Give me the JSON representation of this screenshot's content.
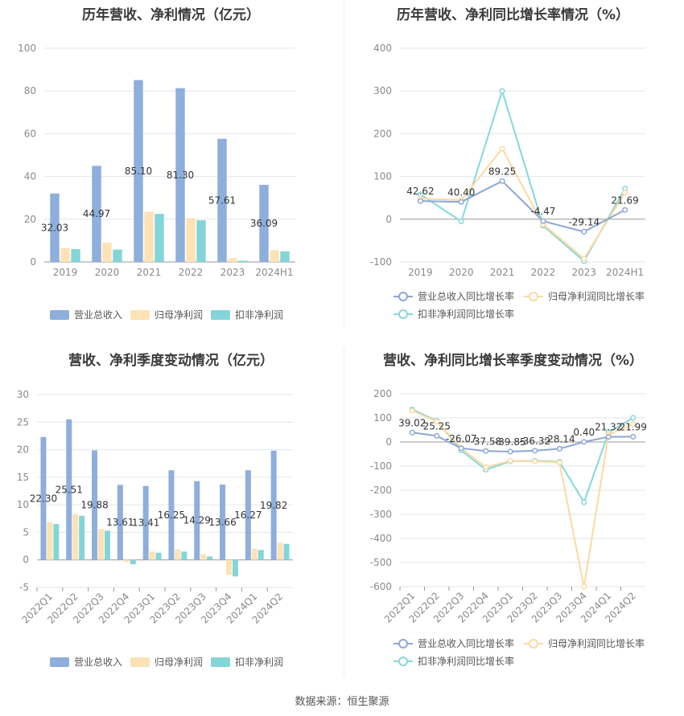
{
  "source": "数据来源：恒生聚源",
  "colors": {
    "revenue_bar": "#8eaedc",
    "parent_bar": "#fde2b5",
    "nonrec_bar": "#84d5d8",
    "revenue_line": "#8ea7d3",
    "parent_line": "#fcd9a0",
    "nonrec_line": "#86d8dc",
    "grid": "#e3e6ef",
    "axis_text": "#8a8a8a",
    "label_text": "#333333"
  },
  "chart_data": [
    {
      "type": "bar",
      "title": "历年营收、净利情况（亿元）",
      "categories": [
        "2019",
        "2020",
        "2021",
        "2022",
        "2023",
        "2024H1"
      ],
      "ylim": [
        0,
        100
      ],
      "yticks": [
        "0",
        "20",
        "40",
        "60",
        "80",
        "100"
      ],
      "series": [
        {
          "name": "营业总收入",
          "values": [
            32.03,
            44.97,
            85.1,
            81.3,
            57.61,
            36.09
          ],
          "labels": [
            "32.03",
            "44.97",
            "85.10",
            "81.30",
            "57.61",
            "36.09"
          ]
        },
        {
          "name": "归母净利润",
          "values": [
            6.5,
            9.0,
            23.5,
            20.5,
            1.8,
            5.5
          ]
        },
        {
          "name": "扣非净利润",
          "values": [
            6.0,
            5.8,
            22.5,
            19.5,
            0.6,
            5.0
          ]
        }
      ],
      "legend": "bottom",
      "grid": true
    },
    {
      "type": "line",
      "title": "历年营收、净利同比增长率情况（%）",
      "categories": [
        "2019",
        "2020",
        "2021",
        "2022",
        "2023",
        "2024H1"
      ],
      "ylim": [
        -100,
        400
      ],
      "yticks": [
        "-100",
        "0",
        "100",
        "200",
        "300",
        "400"
      ],
      "series": [
        {
          "name": "营业总收入同比增长率",
          "values": [
            42.62,
            40.4,
            89.25,
            -4.47,
            -29.14,
            21.69
          ],
          "labels": [
            "42.62",
            "40.40",
            "89.25",
            "-4.47",
            "-29.14",
            "21.69"
          ]
        },
        {
          "name": "归母净利润同比增长率",
          "values": [
            48,
            45,
            165,
            -12,
            -92,
            62
          ]
        },
        {
          "name": "扣非净利润同比增长率",
          "values": [
            58,
            -5,
            300,
            -15,
            -98,
            72
          ]
        }
      ],
      "legend": "bottom",
      "grid": true
    },
    {
      "type": "bar",
      "title": "营收、净利季度变动情况（亿元）",
      "categories": [
        "2022Q1",
        "2022Q2",
        "2022Q3",
        "2022Q4",
        "2023Q1",
        "2023Q2",
        "2023Q3",
        "2023Q4",
        "2024Q1",
        "2024Q2"
      ],
      "ylim": [
        -5,
        30
      ],
      "yticks": [
        "-5",
        "0",
        "5",
        "10",
        "15",
        "20",
        "25",
        "30"
      ],
      "series": [
        {
          "name": "营业总收入",
          "values": [
            22.3,
            25.51,
            19.88,
            13.61,
            13.41,
            16.25,
            14.29,
            13.66,
            16.27,
            19.82
          ],
          "labels": [
            "22.30",
            "25.51",
            "19.88",
            "13.61",
            "13.41",
            "16.25",
            "14.29",
            "13.66",
            "16.27",
            "19.82"
          ]
        },
        {
          "name": "归母净利润",
          "values": [
            6.8,
            8.3,
            5.6,
            -0.4,
            1.5,
            1.9,
            1.0,
            -2.7,
            2.0,
            3.1
          ]
        },
        {
          "name": "扣非净利润",
          "values": [
            6.5,
            8.0,
            5.3,
            -0.8,
            1.3,
            1.5,
            0.6,
            -3.0,
            1.8,
            2.9
          ]
        }
      ],
      "legend": "bottom",
      "grid": true
    },
    {
      "type": "line",
      "title": "营收、净利同比增长率季度变动情况（%）",
      "categories": [
        "2022Q1",
        "2022Q2",
        "2022Q3",
        "2022Q4",
        "2023Q1",
        "2023Q2",
        "2023Q3",
        "2023Q4",
        "2024Q1",
        "2024Q2"
      ],
      "ylim": [
        -600,
        200
      ],
      "yticks": [
        "-600",
        "-500",
        "-400",
        "-300",
        "-200",
        "-100",
        "0",
        "100",
        "200"
      ],
      "series": [
        {
          "name": "营业总收入同比增长率",
          "values": [
            39.02,
            25.25,
            -26.07,
            -37.58,
            -39.85,
            -36.32,
            -28.14,
            0.4,
            21.32,
            21.99
          ],
          "labels": [
            "39.02",
            "25.25",
            "-26.07",
            "-37.58",
            "-39.85",
            "-36.32",
            "-28.14",
            "0.40",
            "21.32",
            "21.99"
          ]
        },
        {
          "name": "归母净利润同比增长率",
          "values": [
            130,
            85,
            -25,
            -105,
            -78,
            -80,
            -85,
            -600,
            30,
            75
          ]
        },
        {
          "name": "扣非净利润同比增长率",
          "values": [
            135,
            88,
            -35,
            -115,
            -80,
            -78,
            -82,
            -250,
            40,
            100
          ]
        }
      ],
      "legend": "bottom",
      "grid": true
    }
  ]
}
